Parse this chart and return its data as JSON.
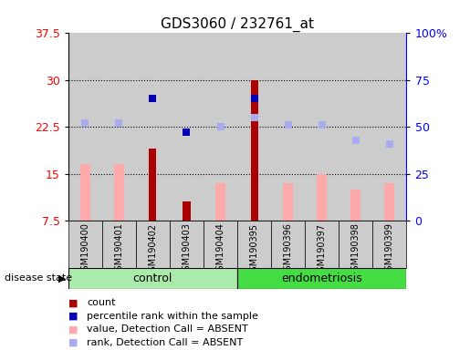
{
  "title": "GDS3060 / 232761_at",
  "samples": [
    "GSM190400",
    "GSM190401",
    "GSM190402",
    "GSM190403",
    "GSM190404",
    "GSM190395",
    "GSM190396",
    "GSM190397",
    "GSM190398",
    "GSM190399"
  ],
  "ylim_left": [
    7.5,
    37.5
  ],
  "ylim_right": [
    0,
    100
  ],
  "yticks_left": [
    7.5,
    15.0,
    22.5,
    30.0,
    37.5
  ],
  "yticks_right": [
    0,
    25,
    50,
    75,
    100
  ],
  "ytick_labels_left": [
    "7.5",
    "15",
    "22.5",
    "30",
    "37.5"
  ],
  "ytick_labels_right": [
    "0",
    "25",
    "50",
    "75",
    "100%"
  ],
  "count_values": [
    null,
    null,
    19.0,
    10.5,
    null,
    30.0,
    null,
    null,
    null,
    null
  ],
  "value_absent": [
    16.5,
    16.5,
    null,
    null,
    13.5,
    null,
    13.5,
    15.0,
    12.5,
    13.5
  ],
  "rank_absent_pct": [
    52,
    52,
    null,
    null,
    50,
    55,
    51,
    51,
    43,
    41
  ],
  "percentile_rank_pct": [
    null,
    null,
    65,
    47,
    null,
    65,
    null,
    null,
    null,
    null
  ],
  "bar_bottom": 7.5,
  "count_color": "#aa0000",
  "value_absent_color": "#ffaaaa",
  "rank_absent_color": "#aaaaee",
  "percentile_color": "#0000bb",
  "sample_bg": "#cccccc",
  "group_bg_control": "#aaeaaa",
  "group_bg_endometriosis": "#44dd44",
  "dotted_grid_color": "#000000",
  "label_fontsize": 8,
  "tick_fontsize": 9,
  "title_fontsize": 11
}
